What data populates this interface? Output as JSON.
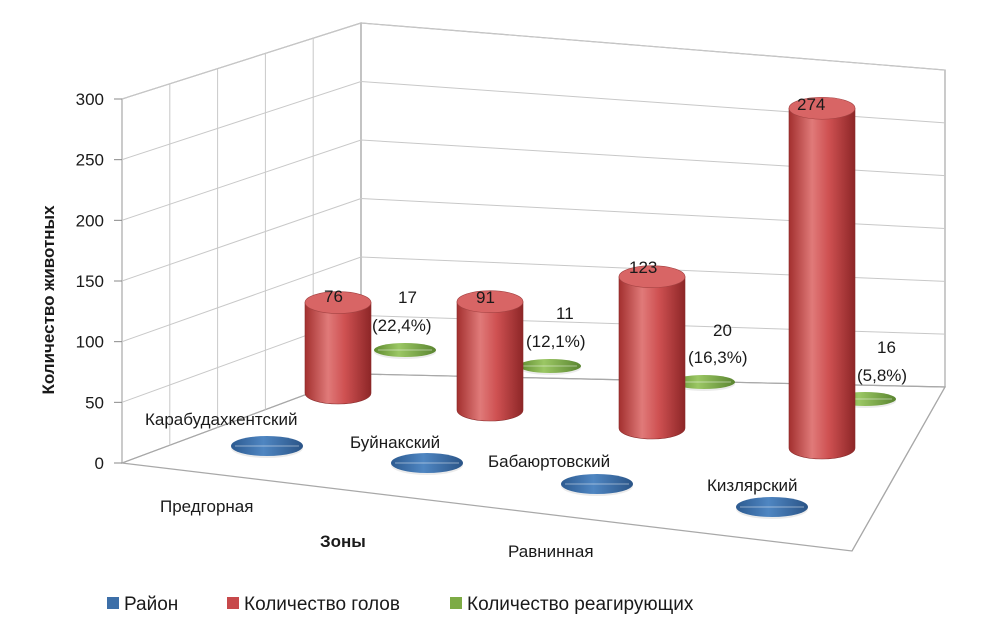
{
  "chart_data": {
    "type": "bar",
    "shape": "3d-cylinder",
    "ylabel": "Количество животных",
    "xlabel": "Зоны",
    "ylim": [
      0,
      300
    ],
    "yticks": [
      "0",
      "50",
      "100",
      "150",
      "200",
      "250",
      "300"
    ],
    "grid": true,
    "legend_position": "bottom",
    "categories": [
      "Карабудахкентский",
      "Буйнакский",
      "Бабаюртовский",
      "Кизлярский"
    ],
    "zones": [
      "Предгорная",
      "Равнинная"
    ],
    "series": [
      {
        "name": "Район",
        "color": "#3d6fa8",
        "values": [
          0,
          0,
          0,
          0
        ],
        "labels": [
          "",
          "",
          "",
          ""
        ]
      },
      {
        "name": "Количество голов",
        "color": "#c7494b",
        "values": [
          76,
          91,
          123,
          274
        ],
        "labels": [
          "76",
          "91",
          "123",
          "274"
        ]
      },
      {
        "name": "Количество реагирующих",
        "color": "#7dab45",
        "values": [
          17,
          11,
          20,
          16
        ],
        "labels": [
          "17",
          "11",
          "20",
          "16"
        ],
        "sublabels": [
          "(22,4%)",
          "(12,1%)",
          "(16,3%)",
          "(5,8%)"
        ]
      }
    ]
  }
}
